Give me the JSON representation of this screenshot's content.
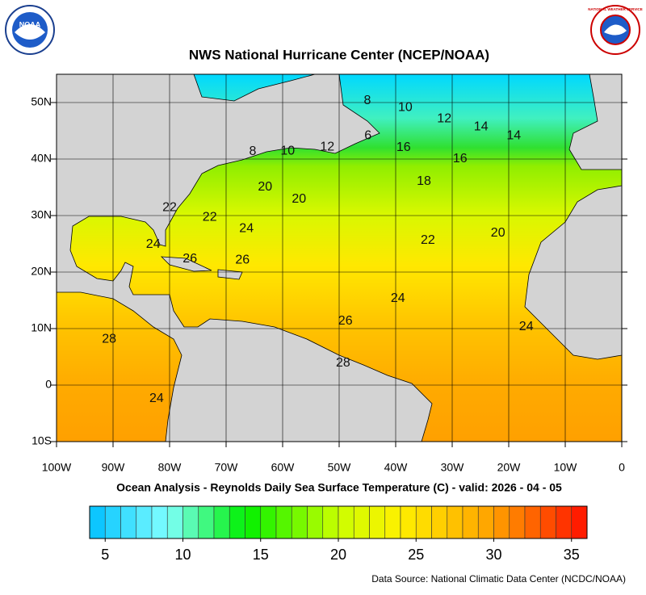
{
  "title": "NWS National Hurricane Center (NCEP/NOAA)",
  "subtitle": "Ocean Analysis - Reynolds Daily Sea Surface Temperature (C) - valid: 2026 - 04 - 05",
  "source": "Data Source: National Climatic Data Center (NCDC/NOAA)",
  "logos": {
    "noaa": "NOAA",
    "nws": "NATIONAL WEATHER SERVICE"
  },
  "map": {
    "xlim": [
      -100,
      0
    ],
    "ylim": [
      -10,
      55
    ],
    "xticks": [
      {
        "value": -100,
        "label": "100W"
      },
      {
        "value": -90,
        "label": "90W"
      },
      {
        "value": -80,
        "label": "80W"
      },
      {
        "value": -70,
        "label": "70W"
      },
      {
        "value": -60,
        "label": "60W"
      },
      {
        "value": -50,
        "label": "50W"
      },
      {
        "value": -40,
        "label": "40W"
      },
      {
        "value": -30,
        "label": "30W"
      },
      {
        "value": -20,
        "label": "20W"
      },
      {
        "value": -10,
        "label": "10W"
      },
      0
    ],
    "yticks": [
      {
        "value": 50,
        "label": "50N"
      },
      {
        "value": 40,
        "label": "40N"
      },
      {
        "value": 30,
        "label": "30N"
      },
      {
        "value": 20,
        "label": "20N"
      },
      {
        "value": 10,
        "label": "10N"
      },
      0,
      {
        "value": -10,
        "label": "10S"
      }
    ],
    "grid": true,
    "contour_labels": [
      {
        "value": 8,
        "lon": -45,
        "lat": 50.3
      },
      {
        "value": 10,
        "lon": -38.3,
        "lat": 49.1
      },
      {
        "value": 12,
        "lon": -31.4,
        "lat": 47.1
      },
      {
        "value": 14,
        "lon": -24.9,
        "lat": 45.7
      },
      {
        "value": 14,
        "lon": -19.1,
        "lat": 44.1
      },
      {
        "value": 8,
        "lon": -65.3,
        "lat": 41.3
      },
      {
        "value": 10,
        "lon": -59.1,
        "lat": 41.4
      },
      {
        "value": 12,
        "lon": -52.1,
        "lat": 42.1
      },
      {
        "value": 6,
        "lon": -44.9,
        "lat": 44.1
      },
      {
        "value": 16,
        "lon": -38.6,
        "lat": 42
      },
      {
        "value": 16,
        "lon": -28.6,
        "lat": 40
      },
      {
        "value": 18,
        "lon": -35,
        "lat": 36
      },
      {
        "value": 20,
        "lon": -63.1,
        "lat": 35
      },
      {
        "value": 20,
        "lon": -57.1,
        "lat": 32.9
      },
      {
        "value": 22,
        "lon": -80,
        "lat": 31.4
      },
      {
        "value": 22,
        "lon": -72.9,
        "lat": 29.7
      },
      {
        "value": 24,
        "lon": -66.4,
        "lat": 27.7
      },
      {
        "value": 22,
        "lon": -34.3,
        "lat": 25.6
      },
      {
        "value": 20,
        "lon": -21.9,
        "lat": 26.9
      },
      {
        "value": 24,
        "lon": -82.9,
        "lat": 24.9
      },
      {
        "value": 26,
        "lon": -76.4,
        "lat": 22.3
      },
      {
        "value": 26,
        "lon": -67.1,
        "lat": 22.1
      },
      {
        "value": 24,
        "lon": -39.6,
        "lat": 15.3
      },
      {
        "value": 26,
        "lon": -48.9,
        "lat": 11.3
      },
      {
        "value": 24,
        "lon": -16.9,
        "lat": 10.3
      },
      {
        "value": 28,
        "lon": -90.7,
        "lat": 8.1
      },
      {
        "value": 28,
        "lon": -49.3,
        "lat": 3.9
      },
      {
        "value": 24,
        "lon": -82.3,
        "lat": -2.4
      }
    ]
  },
  "colorbar": {
    "lim": [
      4,
      36
    ],
    "ticks": [
      5,
      10,
      15,
      20,
      25,
      30,
      35
    ],
    "colormap": [
      {
        "value": 4,
        "color": "#00c0ff"
      },
      {
        "value": 9,
        "color": "#80ffff"
      },
      {
        "value": 14,
        "color": "#00f000"
      },
      {
        "value": 20,
        "color": "#ccff00"
      },
      {
        "value": 24,
        "color": "#fff000"
      },
      {
        "value": 30,
        "color": "#ffa000"
      },
      {
        "value": 36,
        "color": "#ff1000"
      }
    ]
  }
}
